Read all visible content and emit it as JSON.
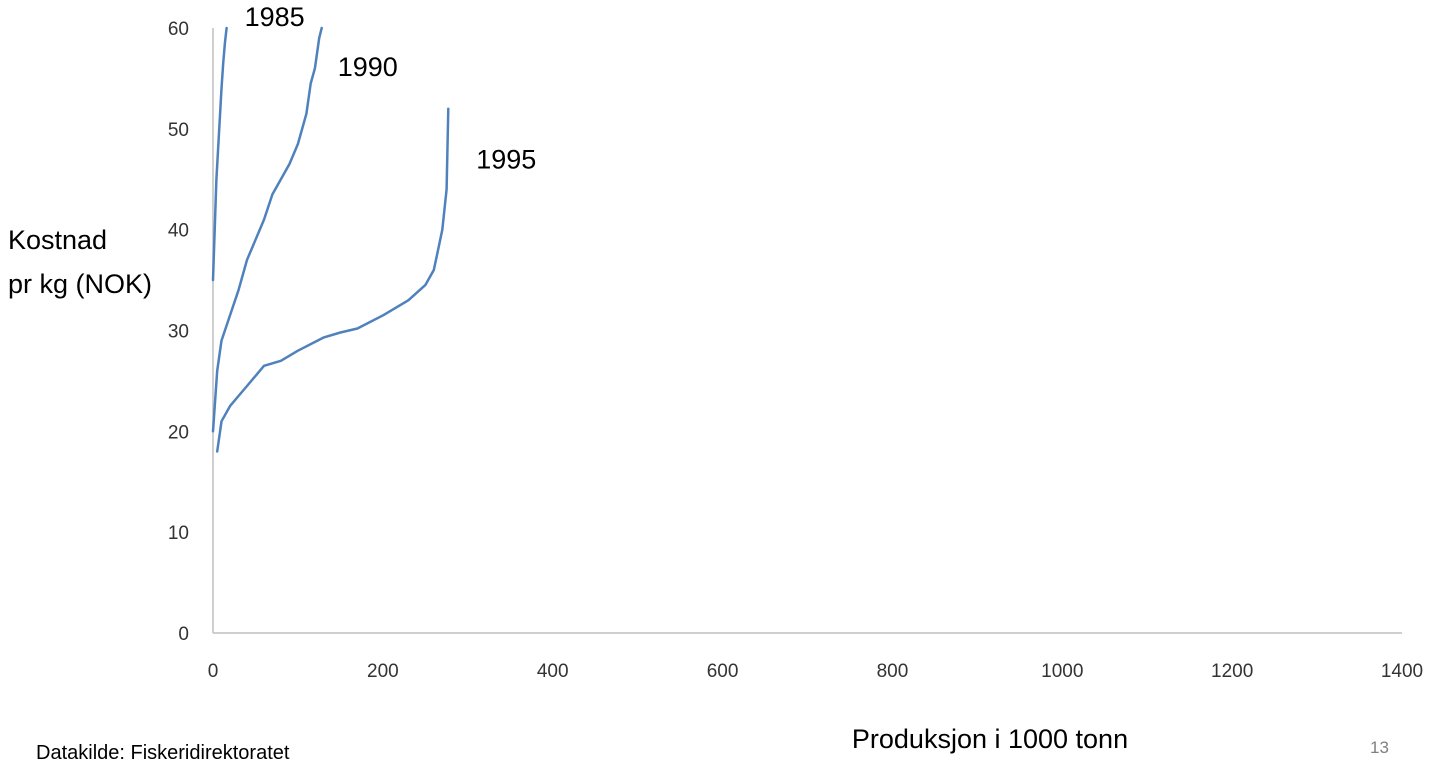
{
  "ylabel_lines": [
    "Kostnad",
    "pr kg (NOK)"
  ],
  "source": "Datakilde: Fiskeridirektoratet",
  "page_number": "13",
  "chart_data": {
    "type": "line",
    "title": "",
    "xlabel": "Produksjon i 1000 tonn",
    "ylabel": "Kostnad pr kg (NOK)",
    "xlim": [
      0,
      1400
    ],
    "ylim": [
      0,
      60
    ],
    "x_ticks": [
      0,
      200,
      400,
      600,
      800,
      1000,
      1200,
      1400
    ],
    "y_ticks": [
      0,
      10,
      20,
      30,
      40,
      50,
      60
    ],
    "grid": false,
    "legend": "none",
    "line_color": "#4f81bd",
    "series": [
      {
        "name": "1985",
        "x": [
          0,
          2,
          4,
          6,
          8,
          10,
          12,
          14,
          16
        ],
        "y": [
          35,
          40,
          45,
          48,
          51,
          54,
          56.5,
          58.5,
          60
        ]
      },
      {
        "name": "1990",
        "x": [
          0,
          5,
          10,
          20,
          30,
          40,
          50,
          60,
          70,
          80,
          90,
          100,
          110,
          115,
          120,
          125,
          128
        ],
        "y": [
          20,
          26,
          29,
          31.5,
          34,
          37,
          39,
          41,
          43.5,
          45,
          46.5,
          48.5,
          51.5,
          54.5,
          56,
          59,
          60
        ]
      },
      {
        "name": "1995",
        "x": [
          5,
          10,
          20,
          30,
          40,
          50,
          60,
          80,
          100,
          130,
          150,
          170,
          200,
          230,
          250,
          260,
          265,
          270,
          275,
          277
        ],
        "y": [
          18,
          21,
          22.5,
          23.5,
          24.5,
          25.5,
          26.5,
          27,
          28,
          29.3,
          29.8,
          30.2,
          31.5,
          33,
          34.5,
          36,
          38,
          40,
          44,
          52
        ]
      }
    ]
  }
}
